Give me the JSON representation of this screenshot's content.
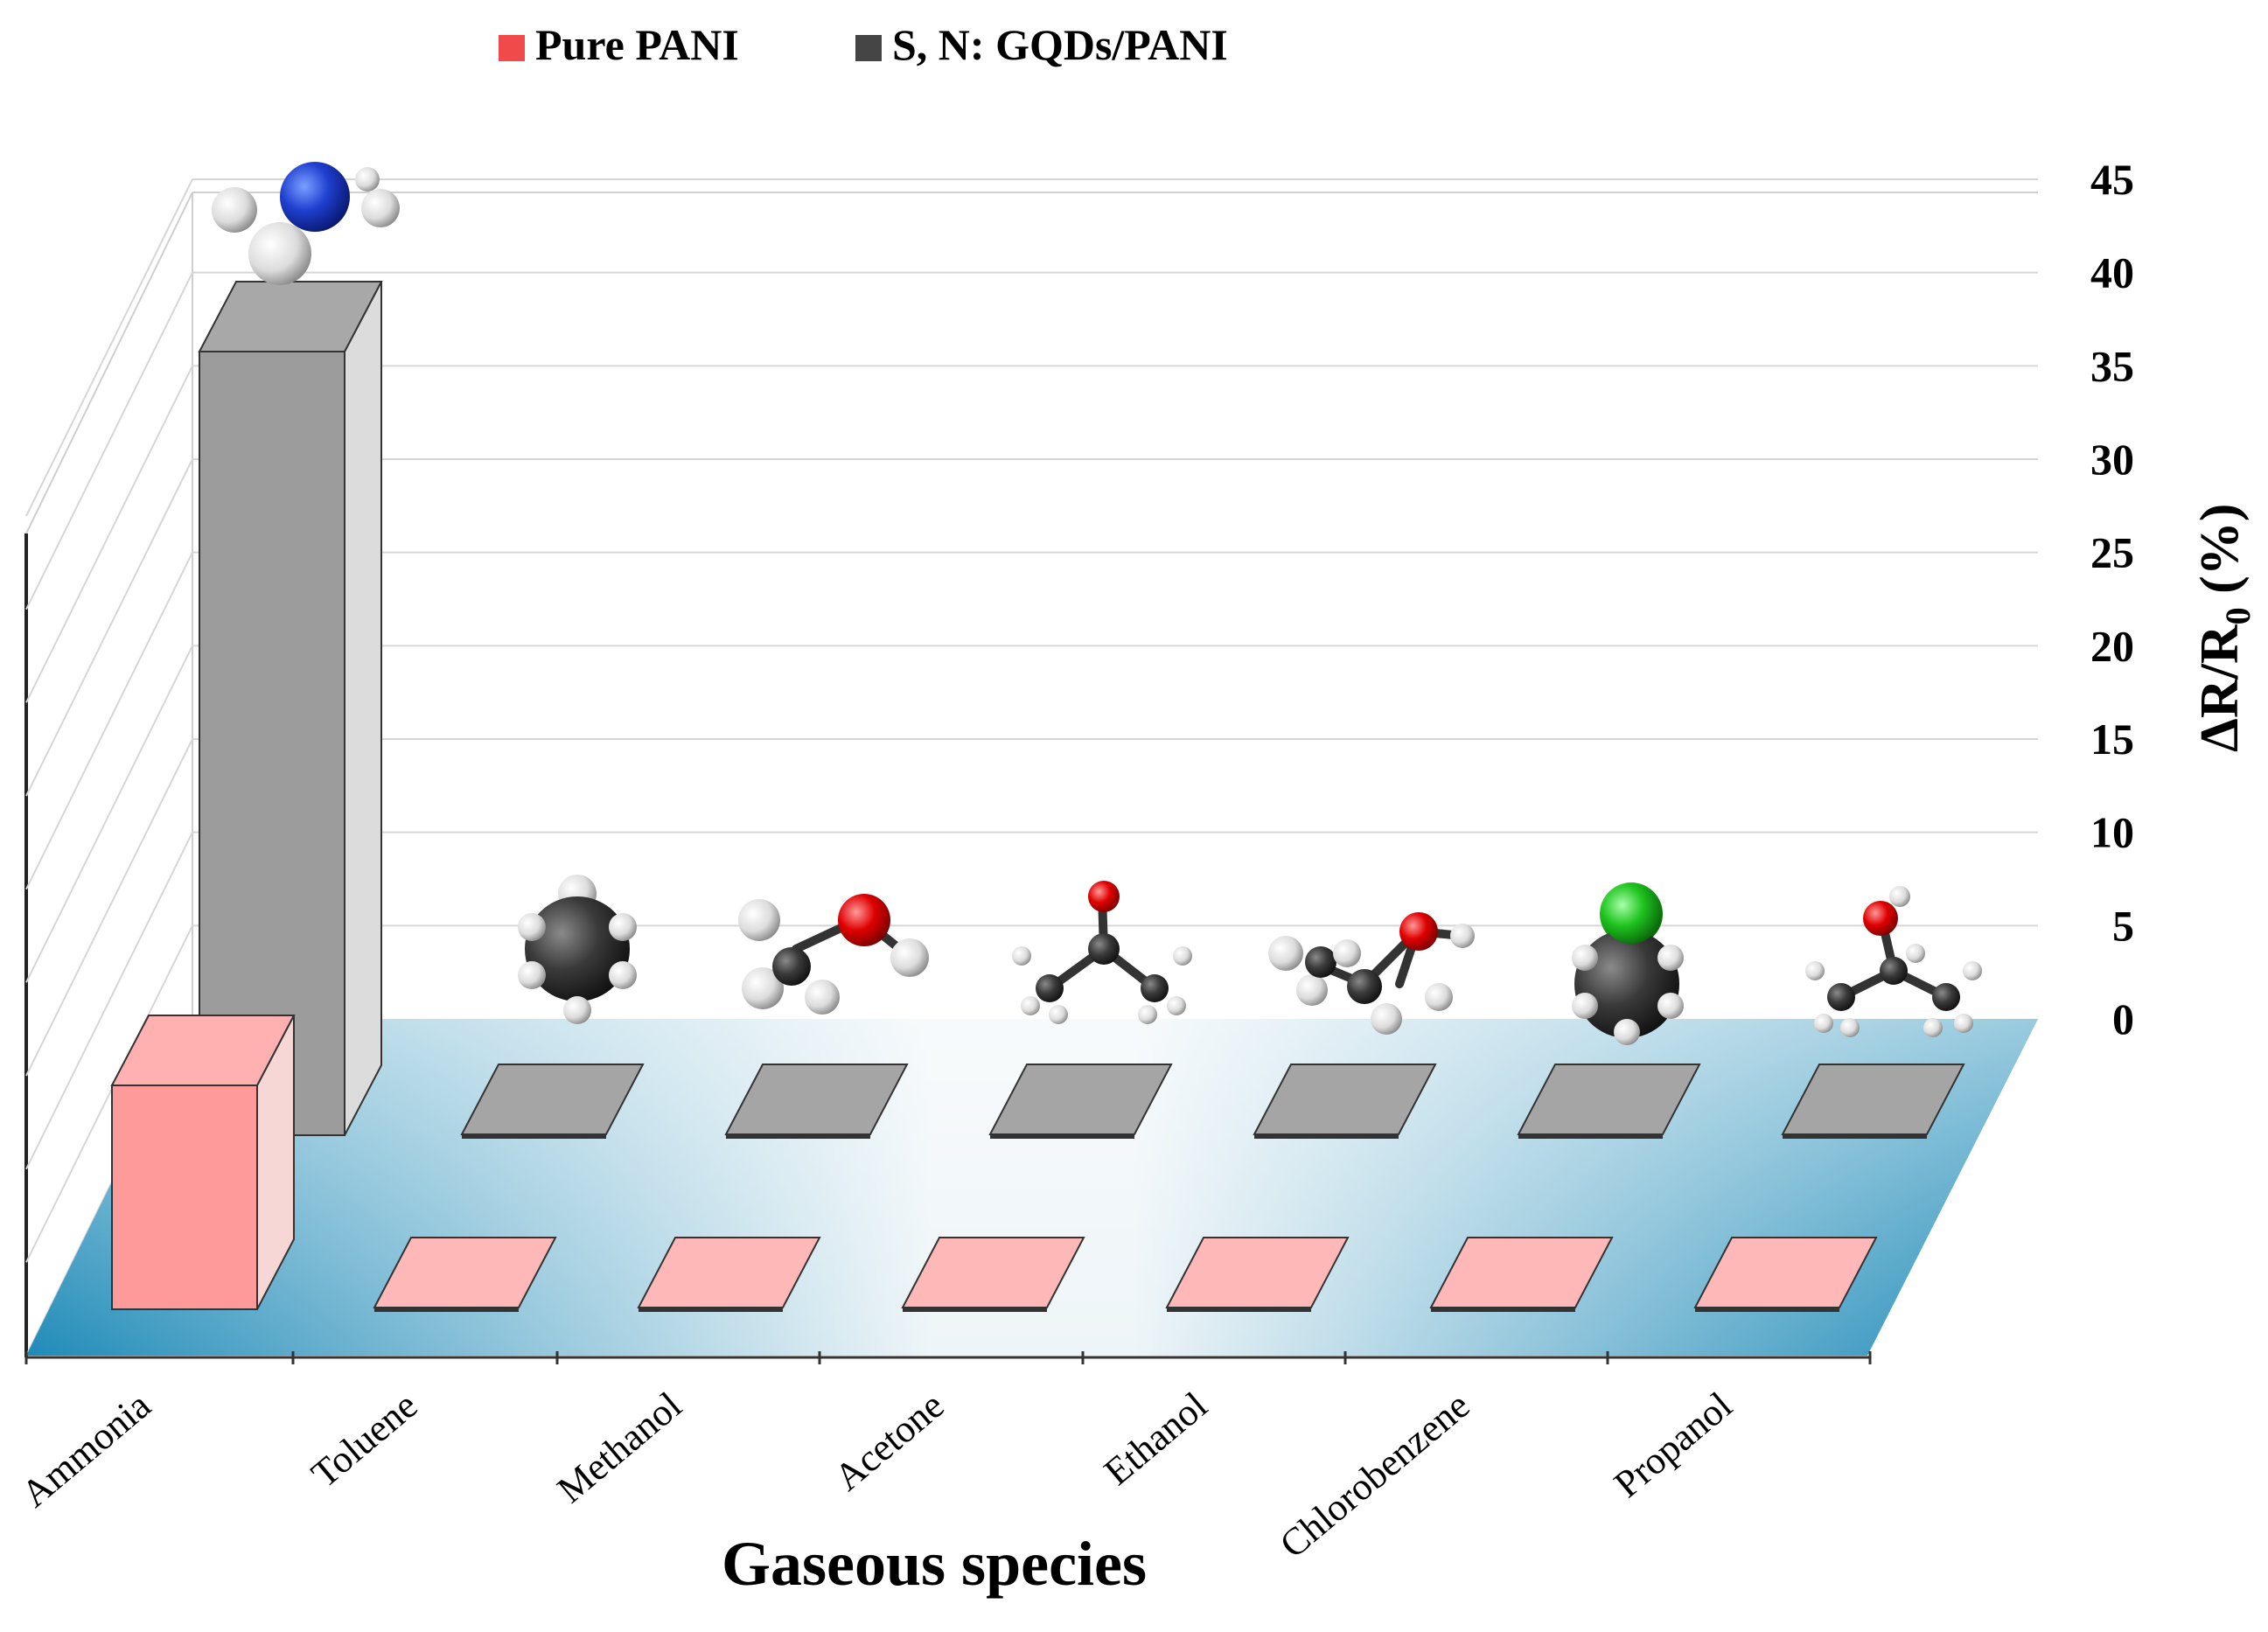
{
  "chart_data": {
    "type": "bar",
    "style": "3d",
    "title": "",
    "xlabel": "Gaseous species",
    "ylabel": "ΔR/R0 (%)",
    "ylabel_main": "ΔR/R",
    "ylabel_sub": "0",
    "ylabel_tail": " (%)",
    "ylim": [
      0,
      45
    ],
    "yticks": [
      "0",
      "5",
      "10",
      "15",
      "20",
      "25",
      "30",
      "35",
      "40",
      "45"
    ],
    "categories": [
      "Ammonia",
      "Toluene",
      "Methanol",
      "Acetone",
      "Ethanol",
      "Chlorobenzene",
      "Propanol"
    ],
    "series": [
      {
        "name": "Pure PANI",
        "values": [
          12,
          0,
          0,
          0,
          0,
          0,
          0
        ],
        "color": "#ff9a9a"
      },
      {
        "name": "S, N: GQDs/PANI",
        "values": [
          42,
          0,
          0,
          0,
          0,
          0,
          0
        ],
        "color": "#9c9c9c"
      }
    ],
    "legend": {
      "position": "top-center",
      "items": [
        "Pure PANI",
        "S, N: GQDs/PANI"
      ]
    },
    "molecules": [
      "ammonia",
      "toluene",
      "methanol",
      "acetone",
      "ethanol",
      "chlorobenzene",
      "propanol"
    ],
    "grid": true
  }
}
